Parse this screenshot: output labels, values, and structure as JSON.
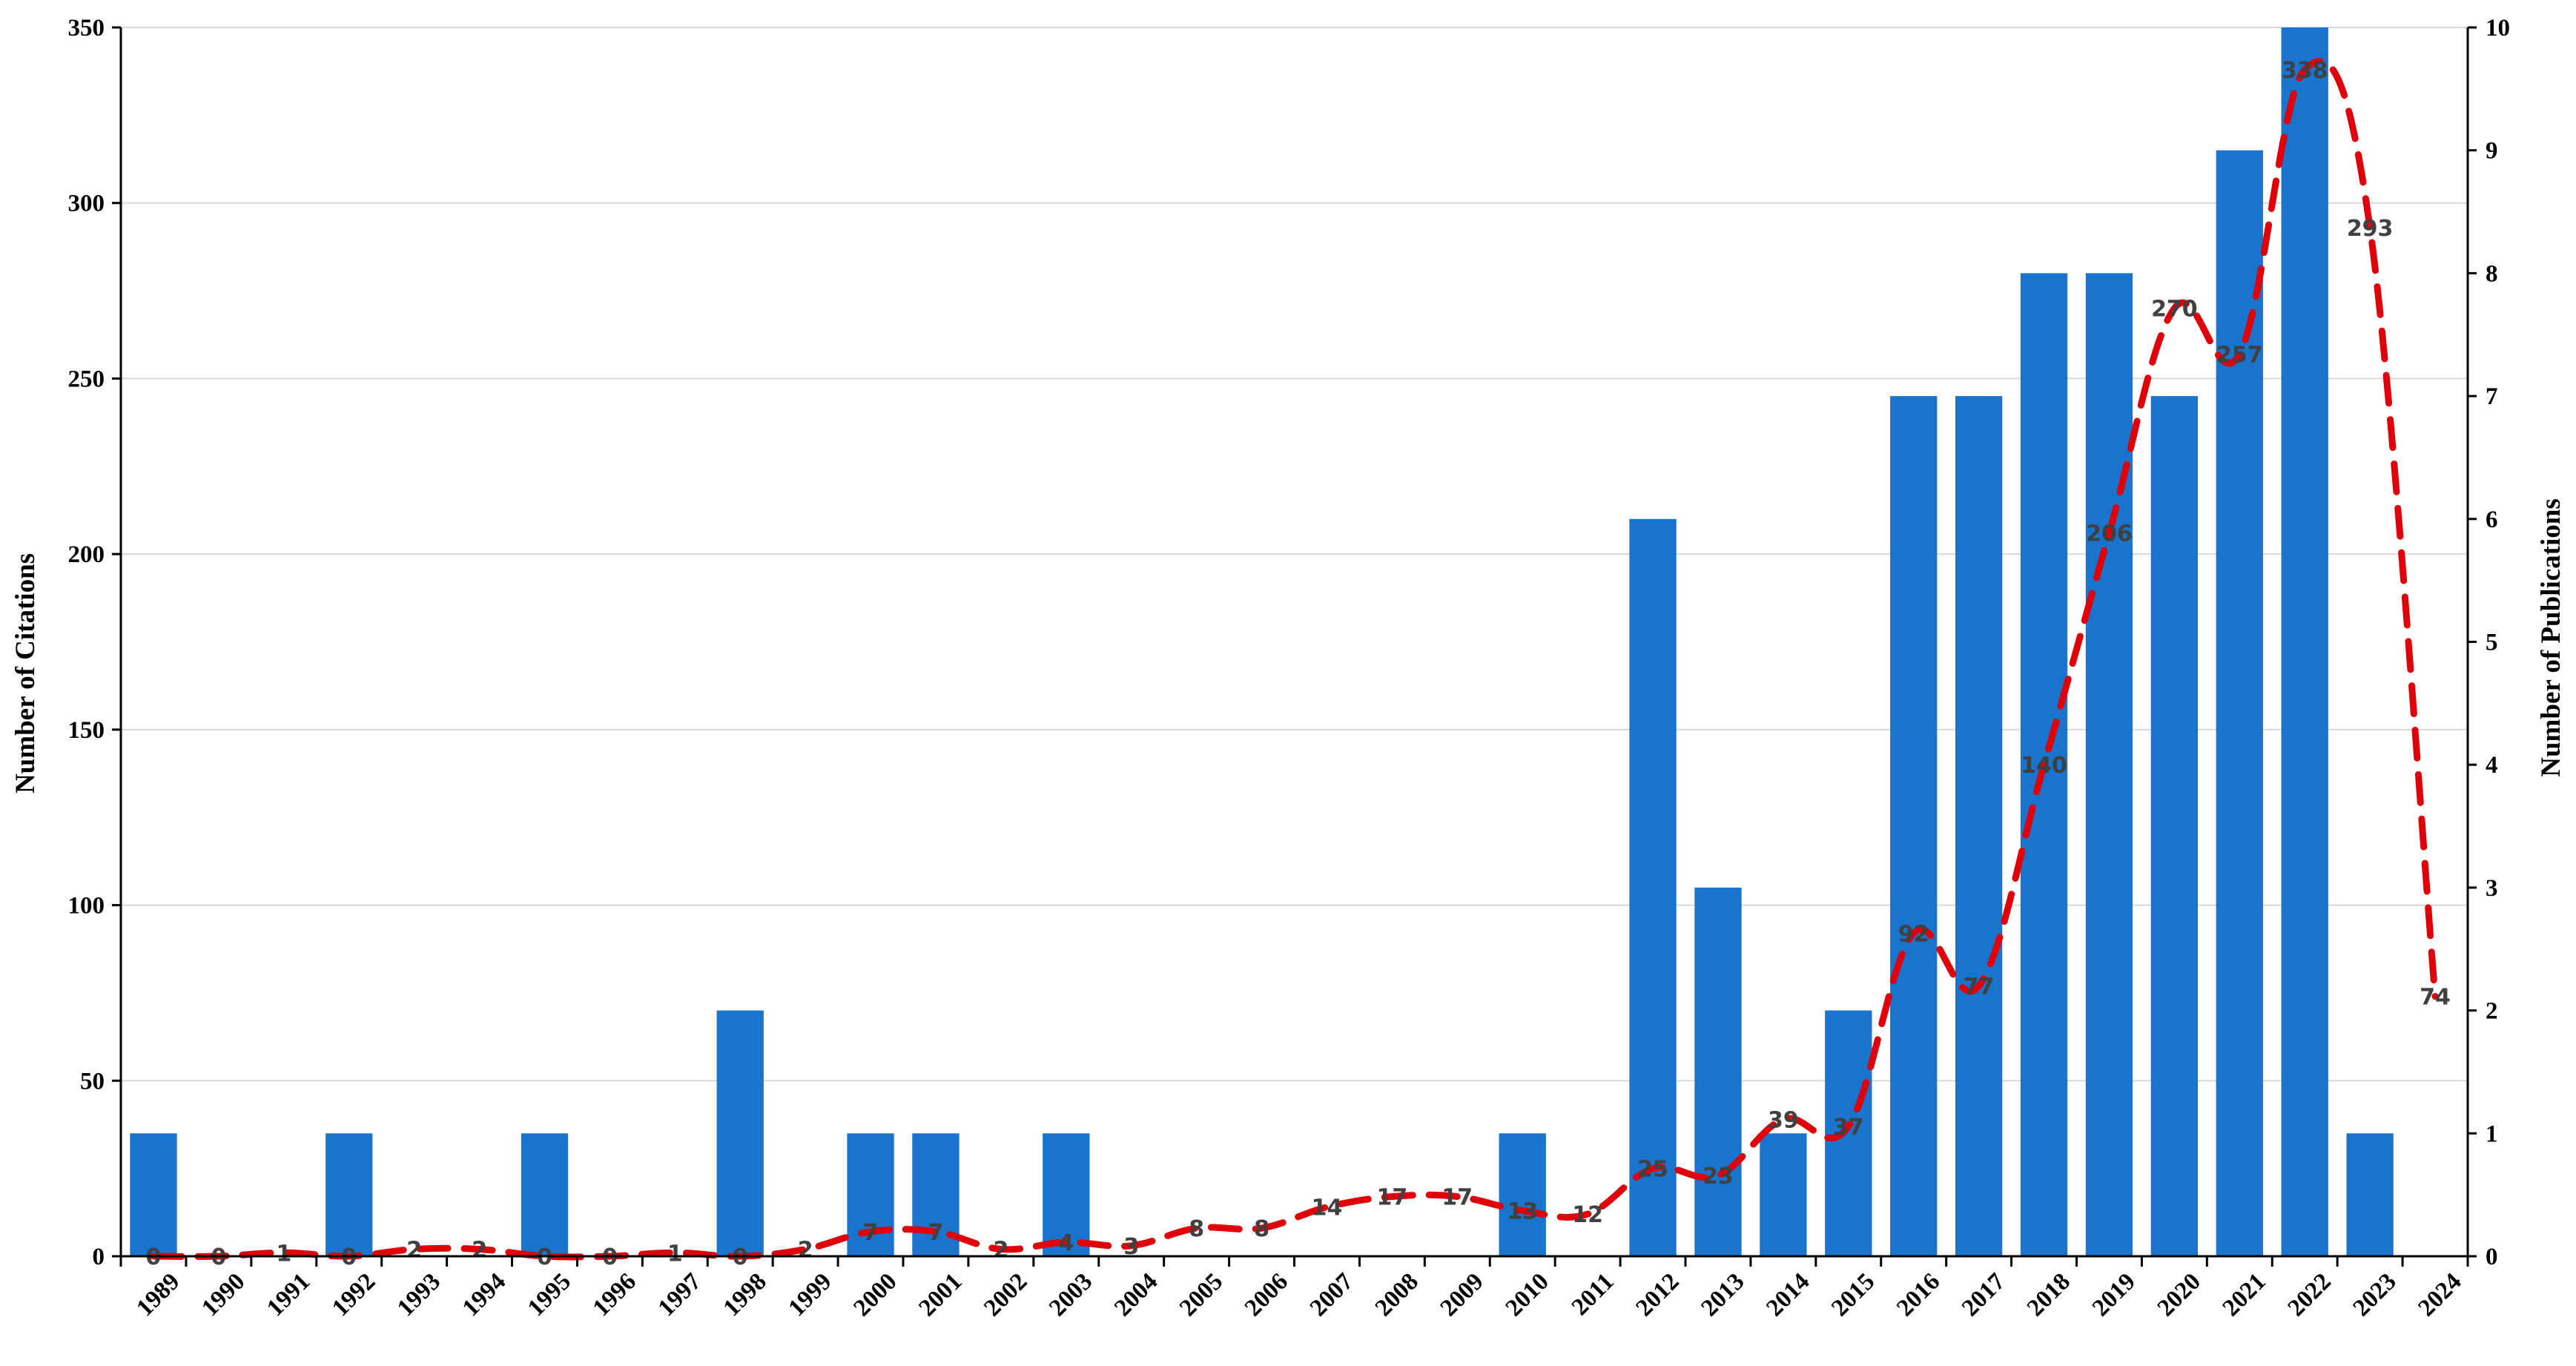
{
  "chart_data": {
    "type": "bar",
    "combo": "bar + dashed line (dual axis)",
    "categories": [
      "1989",
      "1990",
      "1991",
      "1992",
      "1993",
      "1994",
      "1995",
      "1996",
      "1997",
      "1998",
      "1999",
      "2000",
      "2001",
      "2002",
      "2003",
      "2004",
      "2005",
      "2006",
      "2007",
      "2008",
      "2009",
      "2010",
      "2011",
      "2012",
      "2013",
      "2014",
      "2015",
      "2016",
      "2017",
      "2018",
      "2019",
      "2020",
      "2021",
      "2022",
      "2023",
      "2024"
    ],
    "series": [
      {
        "type": "bar",
        "axis": "right",
        "color": "#1874cd",
        "values": [
          1,
          0,
          0,
          1,
          0,
          0,
          1,
          0,
          0,
          2,
          0,
          1,
          1,
          0,
          1,
          0,
          0,
          0,
          0,
          0,
          0,
          1,
          0,
          6,
          3,
          1,
          2,
          7,
          7,
          8,
          8,
          7,
          9,
          10,
          1,
          0
        ]
      },
      {
        "type": "line",
        "axis": "left",
        "color": "#e0000a",
        "style": "dashed",
        "values": [
          0,
          0,
          1,
          0,
          2,
          2,
          0,
          0,
          1,
          0,
          2,
          7,
          7,
          2,
          4,
          3,
          8,
          8,
          14,
          17,
          17,
          13,
          12,
          25,
          23,
          39,
          37,
          92,
          77,
          140,
          206,
          270,
          257,
          338,
          293,
          74
        ],
        "labels": [
          "0",
          "0",
          "1",
          "0",
          "2",
          "2",
          "0",
          "0",
          "1",
          "0",
          "2",
          "7",
          "7",
          "2",
          "4",
          "3",
          "8",
          "8",
          "14",
          "17",
          "17",
          "13",
          "12",
          "25",
          "23",
          "39",
          "37",
          "92",
          "77",
          "140",
          "206",
          "270",
          "257",
          "338",
          "293",
          "74"
        ]
      }
    ],
    "y_left": {
      "label": "Number of Citations",
      "min": 0,
      "max": 350,
      "ticks": [
        "0",
        "50",
        "100",
        "150",
        "200",
        "250",
        "300",
        "350"
      ]
    },
    "y_right": {
      "label": "Number  of Publications",
      "min": 0,
      "max": 10,
      "ticks": [
        "0",
        "1",
        "2",
        "3",
        "4",
        "5",
        "6",
        "7",
        "8",
        "9",
        "10"
      ]
    },
    "grid": true,
    "legend": "none"
  }
}
